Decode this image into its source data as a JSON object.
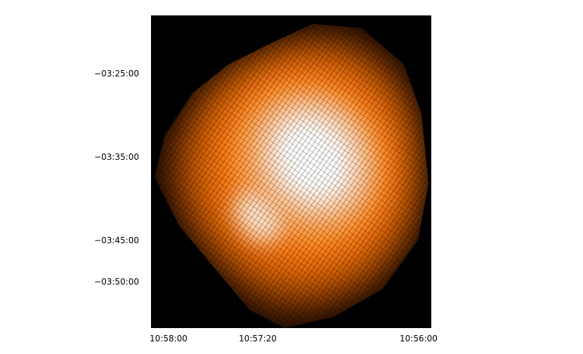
{
  "image": {
    "colormap": {
      "low": "#000000",
      "mid": "#ff8c1a",
      "high": "#ffffff"
    }
  },
  "axes": {
    "y_ticks": [
      "−03:25:00",
      "−03:35:00",
      "−03:45:00",
      "−03:50:00"
    ],
    "x_ticks": [
      "10:58:00",
      "10:57:20",
      "10:56:00"
    ]
  }
}
